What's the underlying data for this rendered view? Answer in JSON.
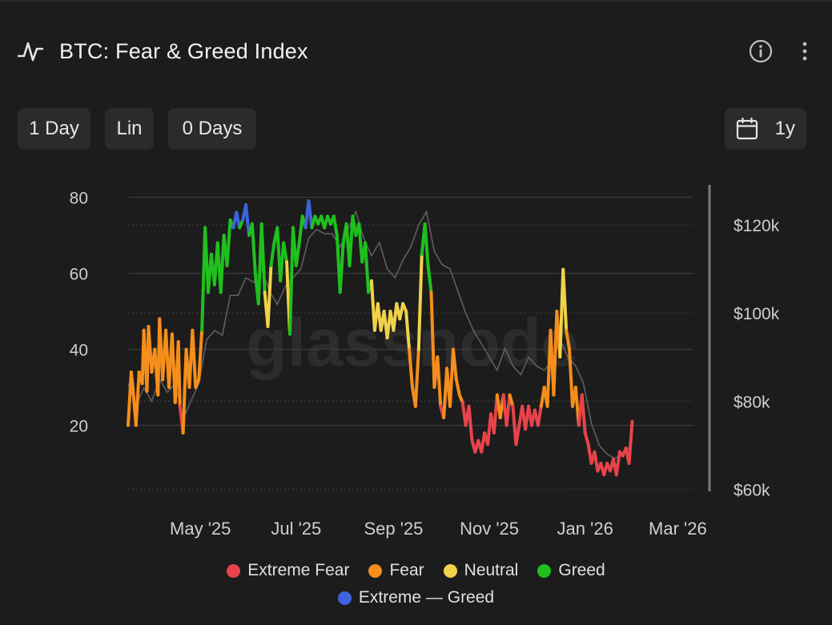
{
  "header": {
    "title": "BTC: Fear & Greed Index",
    "pulse_icon": "pulse-icon",
    "info_icon": "info-icon",
    "more_icon": "more-vertical-icon"
  },
  "controls": {
    "resolution": "1 Day",
    "scale": "Lin",
    "smoothing": "0 Days",
    "range": "1y",
    "range_icon": "calendar-icon"
  },
  "watermark": "glassnode",
  "colors": {
    "extreme_fear": "#e8434a",
    "fear": "#f58e1b",
    "neutral": "#efd24a",
    "greed": "#1fc01d",
    "extreme_greed": "#3f63de",
    "price": "#5f5f5f",
    "grid": "#3a3a3a"
  },
  "chart_data": {
    "type": "line",
    "title": "BTC: Fear & Greed Index",
    "x_ticks": [
      "May '25",
      "Jul '25",
      "Sep '25",
      "Nov '25",
      "Jan '26",
      "Mar '26"
    ],
    "x_tick_days": [
      46,
      107,
      169,
      230,
      291,
      350
    ],
    "x_range_days": [
      0,
      360
    ],
    "y_left": {
      "ticks": [
        20,
        40,
        60,
        80
      ],
      "range": [
        2,
        82
      ]
    },
    "y_right": {
      "ticks": [
        "$60k",
        "$80k",
        "$100k",
        "$120k"
      ],
      "tick_values": [
        60000,
        80000,
        100000,
        120000
      ],
      "range": [
        59000,
        128000
      ]
    },
    "legend": [
      "Extreme Fear",
      "Fear",
      "Neutral",
      "Greed",
      "Extreme — Greed"
    ],
    "legend_placement": "bottom",
    "grid": true,
    "series": [
      {
        "name": "Fear & Greed Index",
        "axis": "left",
        "points": [
          [
            0,
            20
          ],
          [
            2,
            34
          ],
          [
            3,
            30
          ],
          [
            5,
            20
          ],
          [
            7,
            34
          ],
          [
            9,
            31
          ],
          [
            10,
            45
          ],
          [
            12,
            29
          ],
          [
            13,
            46
          ],
          [
            15,
            34
          ],
          [
            17,
            40
          ],
          [
            19,
            28
          ],
          [
            20,
            48
          ],
          [
            22,
            32
          ],
          [
            24,
            45
          ],
          [
            26,
            30
          ],
          [
            28,
            44
          ],
          [
            30,
            26
          ],
          [
            32,
            42
          ],
          [
            33,
            25
          ],
          [
            35,
            18
          ],
          [
            37,
            40
          ],
          [
            39,
            30
          ],
          [
            41,
            45
          ],
          [
            43,
            30
          ],
          [
            45,
            32
          ],
          [
            47,
            45
          ],
          [
            49,
            72
          ],
          [
            51,
            55
          ],
          [
            53,
            65
          ],
          [
            55,
            57
          ],
          [
            57,
            68
          ],
          [
            59,
            55
          ],
          [
            61,
            70
          ],
          [
            63,
            62
          ],
          [
            65,
            74
          ],
          [
            67,
            72
          ],
          [
            69,
            76
          ],
          [
            71,
            72
          ],
          [
            73,
            74
          ],
          [
            75,
            78
          ],
          [
            77,
            70
          ],
          [
            79,
            73
          ],
          [
            81,
            60
          ],
          [
            83,
            52
          ],
          [
            85,
            73
          ],
          [
            87,
            55
          ],
          [
            89,
            46
          ],
          [
            91,
            62
          ],
          [
            93,
            68
          ],
          [
            95,
            72
          ],
          [
            97,
            58
          ],
          [
            99,
            68
          ],
          [
            101,
            63
          ],
          [
            103,
            44
          ],
          [
            105,
            72
          ],
          [
            107,
            62
          ],
          [
            109,
            68
          ],
          [
            111,
            75
          ],
          [
            113,
            72
          ],
          [
            115,
            79
          ],
          [
            117,
            72
          ],
          [
            119,
            75
          ],
          [
            121,
            73
          ],
          [
            123,
            75
          ],
          [
            125,
            72
          ],
          [
            127,
            75
          ],
          [
            129,
            73
          ],
          [
            131,
            75
          ],
          [
            133,
            70
          ],
          [
            135,
            55
          ],
          [
            137,
            68
          ],
          [
            139,
            73
          ],
          [
            141,
            62
          ],
          [
            143,
            75
          ],
          [
            145,
            70
          ],
          [
            147,
            73
          ],
          [
            149,
            63
          ],
          [
            151,
            68
          ],
          [
            153,
            55
          ],
          [
            155,
            58
          ],
          [
            157,
            45
          ],
          [
            159,
            52
          ],
          [
            161,
            45
          ],
          [
            163,
            50
          ],
          [
            165,
            43
          ],
          [
            167,
            50
          ],
          [
            169,
            45
          ],
          [
            171,
            52
          ],
          [
            173,
            48
          ],
          [
            175,
            52
          ],
          [
            177,
            50
          ],
          [
            179,
            40
          ],
          [
            181,
            30
          ],
          [
            183,
            25
          ],
          [
            185,
            40
          ],
          [
            187,
            65
          ],
          [
            189,
            73
          ],
          [
            191,
            62
          ],
          [
            193,
            55
          ],
          [
            195,
            30
          ],
          [
            197,
            38
          ],
          [
            199,
            25
          ],
          [
            201,
            22
          ],
          [
            203,
            35
          ],
          [
            205,
            25
          ],
          [
            207,
            40
          ],
          [
            209,
            32
          ],
          [
            211,
            28
          ],
          [
            213,
            26
          ],
          [
            215,
            20
          ],
          [
            217,
            25
          ],
          [
            219,
            16
          ],
          [
            221,
            13
          ],
          [
            223,
            16
          ],
          [
            225,
            13
          ],
          [
            227,
            18
          ],
          [
            229,
            15
          ],
          [
            231,
            23
          ],
          [
            233,
            18
          ],
          [
            235,
            28
          ],
          [
            237,
            22
          ],
          [
            239,
            28
          ],
          [
            241,
            20
          ],
          [
            243,
            28
          ],
          [
            245,
            25
          ],
          [
            247,
            15
          ],
          [
            249,
            20
          ],
          [
            251,
            25
          ],
          [
            253,
            19
          ],
          [
            255,
            25
          ],
          [
            257,
            20
          ],
          [
            259,
            24
          ],
          [
            261,
            20
          ],
          [
            263,
            25
          ],
          [
            265,
            30
          ],
          [
            267,
            25
          ],
          [
            269,
            45
          ],
          [
            271,
            28
          ],
          [
            273,
            50
          ],
          [
            275,
            38
          ],
          [
            277,
            61
          ],
          [
            279,
            45
          ],
          [
            281,
            40
          ],
          [
            283,
            25
          ],
          [
            285,
            30
          ],
          [
            287,
            20
          ],
          [
            289,
            28
          ],
          [
            291,
            18
          ],
          [
            293,
            15
          ],
          [
            295,
            10
          ],
          [
            297,
            13
          ],
          [
            299,
            8
          ],
          [
            301,
            10
          ],
          [
            303,
            7
          ],
          [
            305,
            10
          ],
          [
            307,
            8
          ],
          [
            309,
            11
          ],
          [
            311,
            7
          ],
          [
            313,
            13
          ],
          [
            315,
            12
          ],
          [
            317,
            14
          ],
          [
            319,
            10
          ],
          [
            321,
            21
          ]
        ]
      },
      {
        "name": "BTC Price",
        "axis": "right",
        "points": [
          [
            0,
            84000
          ],
          [
            5,
            79000
          ],
          [
            10,
            83000
          ],
          [
            15,
            80000
          ],
          [
            20,
            85000
          ],
          [
            25,
            82000
          ],
          [
            30,
            84000
          ],
          [
            35,
            76000
          ],
          [
            40,
            80000
          ],
          [
            45,
            84000
          ],
          [
            50,
            94000
          ],
          [
            55,
            96000
          ],
          [
            60,
            95000
          ],
          [
            65,
            104000
          ],
          [
            70,
            104000
          ],
          [
            75,
            108000
          ],
          [
            80,
            107000
          ],
          [
            85,
            110000
          ],
          [
            90,
            105000
          ],
          [
            95,
            102000
          ],
          [
            100,
            106000
          ],
          [
            105,
            108000
          ],
          [
            110,
            110000
          ],
          [
            115,
            117000
          ],
          [
            120,
            119000
          ],
          [
            125,
            118000
          ],
          [
            130,
            118000
          ],
          [
            135,
            115000
          ],
          [
            140,
            119000
          ],
          [
            145,
            123000
          ],
          [
            150,
            117000
          ],
          [
            155,
            113000
          ],
          [
            160,
            116000
          ],
          [
            165,
            110000
          ],
          [
            170,
            108000
          ],
          [
            175,
            112000
          ],
          [
            180,
            115000
          ],
          [
            185,
            120000
          ],
          [
            190,
            123000
          ],
          [
            195,
            114000
          ],
          [
            200,
            111000
          ],
          [
            205,
            110000
          ],
          [
            210,
            105000
          ],
          [
            215,
            100000
          ],
          [
            220,
            96000
          ],
          [
            225,
            93000
          ],
          [
            230,
            90000
          ],
          [
            235,
            87000
          ],
          [
            240,
            92000
          ],
          [
            245,
            88000
          ],
          [
            250,
            86000
          ],
          [
            255,
            90000
          ],
          [
            260,
            88000
          ],
          [
            265,
            87000
          ],
          [
            270,
            89000
          ],
          [
            275,
            94000
          ],
          [
            280,
            90000
          ],
          [
            285,
            88000
          ],
          [
            290,
            84000
          ],
          [
            295,
            75000
          ],
          [
            300,
            70000
          ],
          [
            305,
            68000
          ],
          [
            310,
            67000
          ],
          [
            315,
            68000
          ],
          [
            320,
            70000
          ]
        ]
      }
    ]
  }
}
